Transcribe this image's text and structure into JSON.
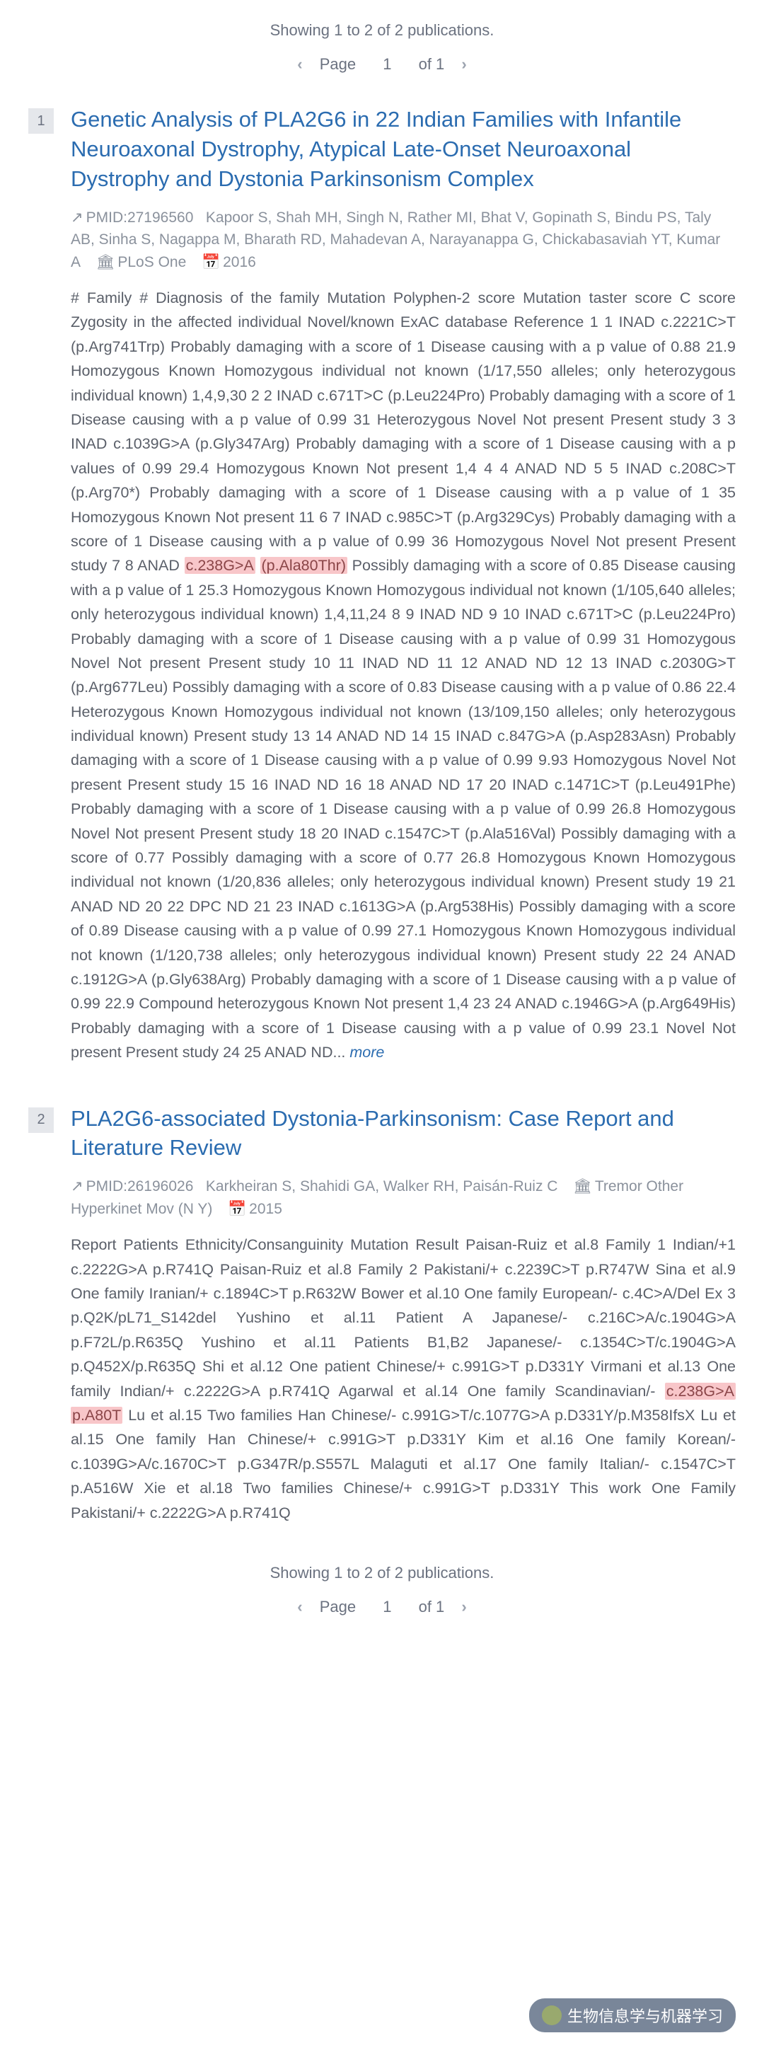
{
  "colors": {
    "title_color": "#2b6cb0",
    "meta_color": "#8a919c",
    "body_color": "#5a5f69",
    "highlight_bg": "#f8c6c9",
    "highlight_fg": "#8a4548",
    "index_bg": "#e5e7eb",
    "index_fg": "#6b7280",
    "watermark_bg": "#6b7a8f"
  },
  "pagination": {
    "showing_text": "Showing 1 to 2 of 2 publications.",
    "page_label": "Page",
    "current_page": "1",
    "of_label": "of 1",
    "prev_icon": "‹",
    "next_icon": "›"
  },
  "publications": [
    {
      "index": "1",
      "title": "Genetic Analysis of PLA2G6 in 22 Indian Families with Infantile Neuroaxonal Dystrophy, Atypical Late-Onset Neuroaxonal Dystrophy and Dystonia Parkinsonism Complex",
      "pmid_label": "PMID:27196560",
      "ext_icon": "↗",
      "authors": "Kapoor S, Shah MH, Singh N, Rather MI, Bhat V, Gopinath S, Bindu PS, Taly AB, Sinha S, Nagappa M, Bharath RD, Mahadevan A, Narayanappa G, Chickabasaviah YT, Kumar A",
      "journal_icon": "🏛",
      "journal": "PLoS One",
      "year_icon": "📅",
      "year": "2016",
      "body_segments": [
        {
          "t": "# Family # Diagnosis of the family Mutation Polyphen-2 score Mutation taster score C score Zygosity in the affected individual Novel/known ExAC database Reference 1 1 INAD c.2221C>T (p.Arg741Trp) Probably damaging with a score of 1 Disease causing with a p value of 0.88 21.9 Homozygous Known Homozygous individual not known (1/17,550 alleles; only heterozygous individual known) 1,4,9,30 2 2 INAD c.671T>C (p.Leu224Pro) Probably damaging with a score of 1 Disease causing with a p value of 0.99 31 Heterozygous Novel Not present Present study 3 3 INAD c.1039G>A (p.Gly347Arg) Probably damaging with a score of 1 Disease causing with a p values of 0.99 29.4 Homozygous Known Not present 1,4 4 4 ANAD ND 5 5 INAD c.208C>T (p.Arg70*) Probably damaging with a score of 1 Disease causing with a p value of 1 35 Homozygous Known Not present 11 6 7 INAD c.985C>T (p.Arg329Cys) Probably damaging with a score of 1 Disease causing with a p value of 0.99 36 Homozygous Novel Not present Present study 7 8 ANAD "
        },
        {
          "t": "c.238G>A",
          "hl": true
        },
        {
          "t": " "
        },
        {
          "t": "(p.Ala80Thr)",
          "hl": true
        },
        {
          "t": " Possibly damaging with a score of 0.85 Disease causing with a p value of 1 25.3 Homozygous Known Homozygous individual not known (1/105,640 alleles; only heterozygous individual known) 1,4,11,24 8 9 INAD ND 9 10 INAD c.671T>C (p.Leu224Pro) Probably damaging with a score of 1 Disease causing with a p value of 0.99 31 Homozygous Novel Not present Present study 10 11 INAD ND 11 12 ANAD ND 12 13 INAD c.2030G>T (p.Arg677Leu) Possibly damaging with a score of 0.83 Disease causing with a p value of 0.86 22.4 Heterozygous Known Homozygous individual not known (13/109,150 alleles; only heterozygous individual known) Present study 13 14 ANAD ND 14 15 INAD c.847G>A (p.Asp283Asn) Probably damaging with a score of 1 Disease causing with a p value of 0.99 9.93 Homozygous Novel Not present Present study 15 16 INAD ND 16 18 ANAD ND 17 20 INAD c.1471C>T (p.Leu491Phe) Probably damaging with a score of 1 Disease causing with a p value of 0.99 26.8 Homozygous Novel Not present Present study 18 20 INAD c.1547C>T (p.Ala516Val) Possibly damaging with a score of 0.77 Possibly damaging with a score of 0.77 26.8 Homozygous Known Homozygous individual not known (1/20,836 alleles; only heterozygous individual known) Present study 19 21 ANAD ND 20 22 DPC ND 21 23 INAD c.1613G>A (p.Arg538His) Possibly damaging with a score of 0.89 Disease causing with a p value of 0.99 27.1 Homozygous Known Homozygous individual not known (1/120,738 alleles; only heterozygous individual known) Present study 22 24 ANAD c.1912G>A (p.Gly638Arg) Probably damaging with a score of 1 Disease causing with a p value of 0.99 22.9 Compound heterozygous Known Not present 1,4 23 24 ANAD c.1946G>A (p.Arg649His) Probably damaging with a score of 1 Disease causing with a p value of 0.99 23.1 Novel Not present Present study 24 25 ANAD ND... "
        }
      ],
      "more_label": "more"
    },
    {
      "index": "2",
      "title": "PLA2G6-associated Dystonia-Parkinsonism: Case Report and Literature Review",
      "pmid_label": "PMID:26196026",
      "ext_icon": "↗",
      "authors": "Karkheiran S, Shahidi GA, Walker RH, Paisán-Ruiz C",
      "journal_icon": "🏛",
      "journal": "Tremor Other Hyperkinet Mov (N Y)",
      "year_icon": "📅",
      "year": "2015",
      "body_segments": [
        {
          "t": "Report Patients Ethnicity/Consanguinity Mutation Result Paisan-Ruiz et al.8 Family 1 Indian/+1 c.2222G>A p.R741Q Paisan-Ruiz et al.8 Family 2 Pakistani/+ c.2239C>T p.R747W Sina et al.9 One family Iranian/+ c.1894C>T p.R632W Bower et al.10 One family European/- c.4C>A/Del Ex 3 p.Q2K/pL71_S142del Yushino et al.11 Patient A Japanese/- c.216C>A/c.1904G>A p.F72L/p.R635Q Yushino et al.11 Patients B1,B2 Japanese/- c.1354C>T/c.1904G>A p.Q452X/p.R635Q Shi et al.12 One patient Chinese/+ c.991G>T p.D331Y Virmani et al.13 One family Indian/+ c.2222G>A p.R741Q Agarwal et al.14 One family Scandinavian/- "
        },
        {
          "t": "c.238G>A",
          "hl": true
        },
        {
          "t": " "
        },
        {
          "t": "p.A80T",
          "hl": true
        },
        {
          "t": " Lu et al.15 Two families Han Chinese/- c.991G>T/c.1077G>A p.D331Y/p.M358IfsX Lu et al.15 One family Han Chinese/+ c.991G>T p.D331Y Kim et al.16 One family Korean/- c.1039G>A/c.1670C>T p.G347R/p.S557L Malaguti et al.17 One family Italian/- c.1547C>T p.A516W Xie et al.18 Two families Chinese/+ c.991G>T p.D331Y This work One Family Pakistani/+ c.2222G>A p.R741Q"
        }
      ],
      "more_label": ""
    }
  ],
  "watermark": {
    "text": "生物信息学与机器学习"
  }
}
